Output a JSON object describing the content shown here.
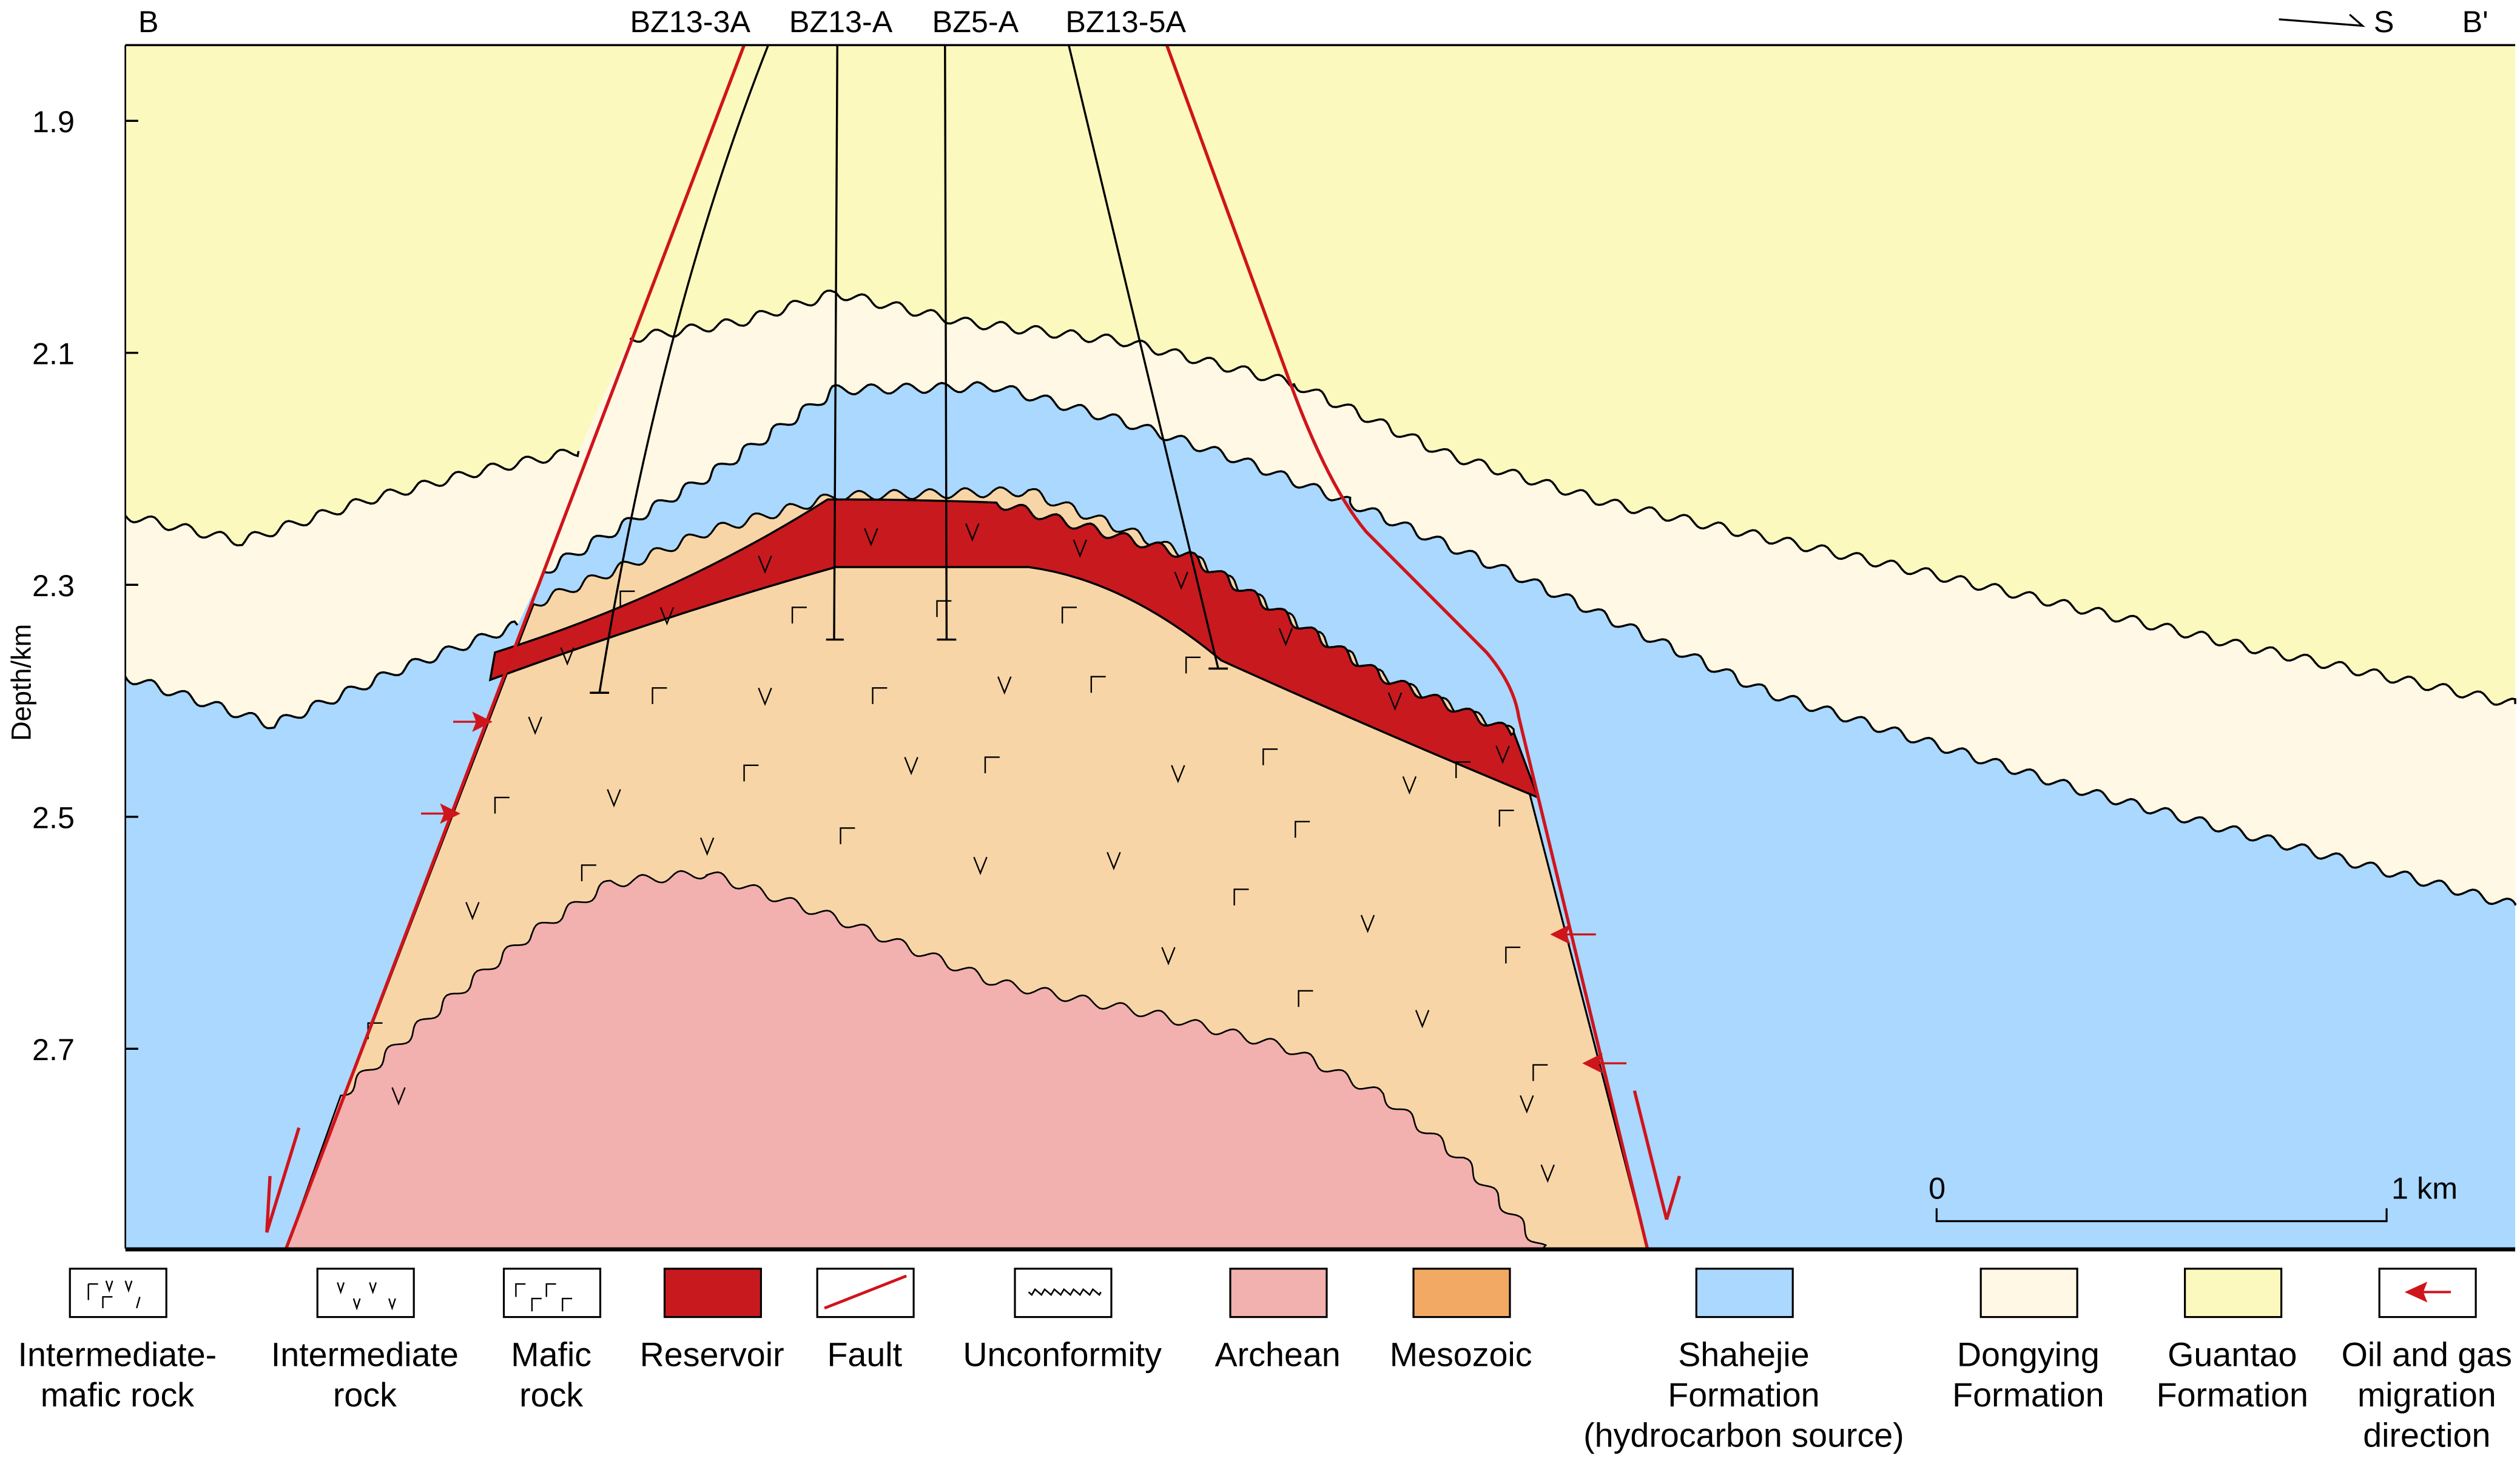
{
  "section": {
    "left_label": "B",
    "right_label": "B'",
    "direction_label": "S",
    "y_axis_label": "Depth/km",
    "depth_ticks": [
      "1.9",
      "2.1",
      "2.3",
      "2.5",
      "2.7"
    ],
    "wells": [
      "BZ13-3A",
      "BZ13-A",
      "BZ5-A",
      "BZ13-5A"
    ],
    "scale_bar": {
      "start": "0",
      "end": "1 km"
    }
  },
  "colors": {
    "shahejie": "#AAD8FF",
    "dongying": "#FEF8E4",
    "guantao": "#FBF9BE",
    "mesozoic_fill": "#F7D5A6",
    "mesozoic_legend": "#F2A963",
    "archean": "#F2B0AE",
    "reservoir": "#C8191F",
    "fault": "#D0141C"
  },
  "legend": [
    {
      "label": "Intermediate-",
      "label2": "mafic rock",
      "label3": ""
    },
    {
      "label": "Intermediate",
      "label2": "rock",
      "label3": ""
    },
    {
      "label": "Mafic",
      "label2": "rock",
      "label3": ""
    },
    {
      "label": "Reservoir",
      "label2": "",
      "label3": ""
    },
    {
      "label": "Fault",
      "label2": "",
      "label3": ""
    },
    {
      "label": "Unconformity",
      "label2": "",
      "label3": ""
    },
    {
      "label": "Archean",
      "label2": "",
      "label3": ""
    },
    {
      "label": "Mesozoic",
      "label2": "",
      "label3": ""
    },
    {
      "label": "Shahejie",
      "label2": "Formation",
      "label3": "(hydrocarbon source)"
    },
    {
      "label": "Dongying",
      "label2": "Formation",
      "label3": ""
    },
    {
      "label": "Guantao",
      "label2": "Formation",
      "label3": ""
    },
    {
      "label": "Oil and gas",
      "label2": "migration",
      "label3": "direction"
    }
  ]
}
